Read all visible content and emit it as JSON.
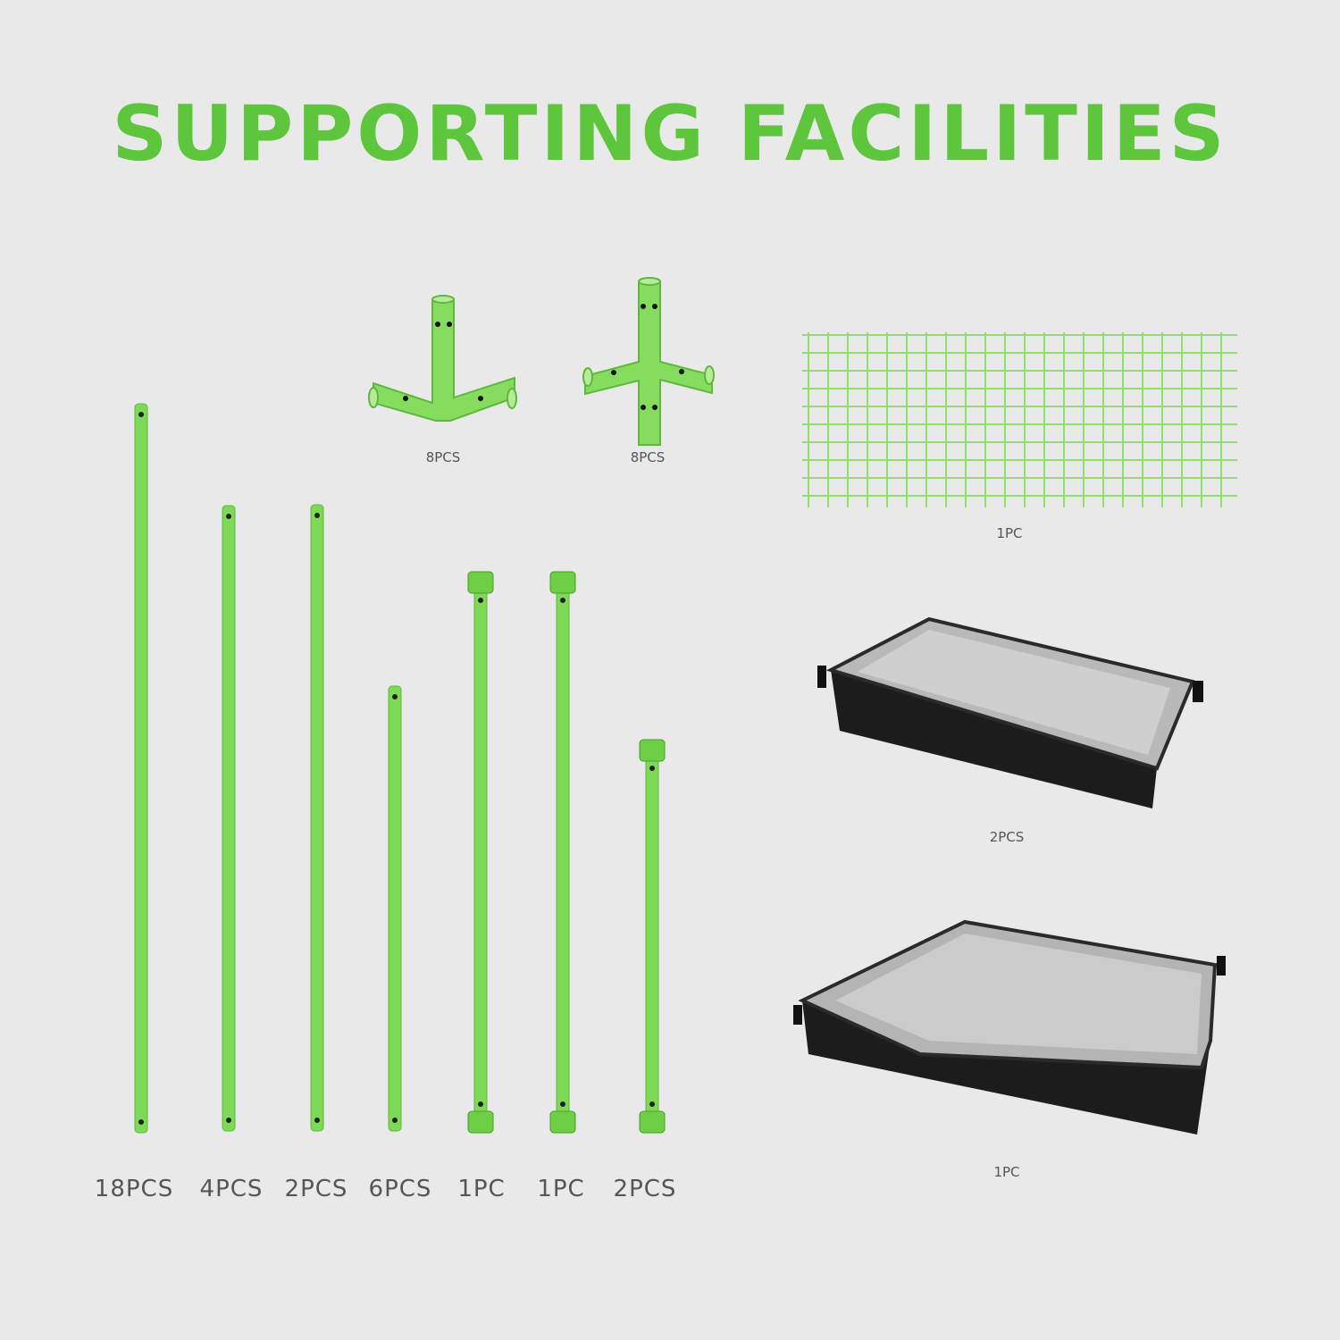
{
  "title": "SUPPORTING FACILITIES",
  "colors": {
    "accent": "#5ec63c",
    "pole": "#7ed957",
    "background": "#e9e9e9",
    "label": "#555555"
  },
  "connectors": [
    {
      "name": "3-way-corner-connector",
      "quantity": "8PCS"
    },
    {
      "name": "4-way-connector",
      "quantity": "8PCS"
    }
  ],
  "net": {
    "name": "trellis-net",
    "quantity": "1PC"
  },
  "trays": [
    {
      "name": "rectangular-floor-tray",
      "quantity": "2PCS"
    },
    {
      "name": "square-floor-tray",
      "quantity": "1PC"
    }
  ],
  "poles": [
    {
      "name": "pole-long",
      "quantity": "18PCS"
    },
    {
      "name": "pole-medium-a",
      "quantity": "4PCS"
    },
    {
      "name": "pole-medium-b",
      "quantity": "2PCS"
    },
    {
      "name": "pole-short",
      "quantity": "6PCS"
    },
    {
      "name": "clamp-bar-a",
      "quantity": "1PC"
    },
    {
      "name": "clamp-bar-b",
      "quantity": "1PC"
    },
    {
      "name": "clamp-bar-short",
      "quantity": "2PCS"
    }
  ]
}
